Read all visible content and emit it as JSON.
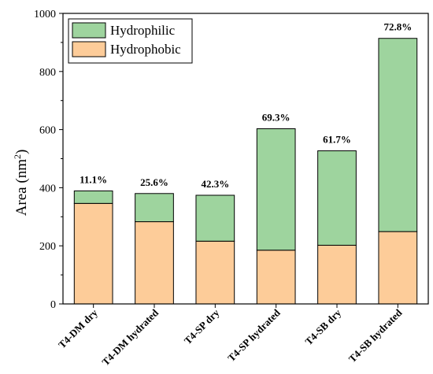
{
  "chart_data": {
    "type": "bar",
    "stacked": true,
    "categories": [
      "T4-DM dry",
      "T4-DM hydrated",
      "T4-SP dry",
      "T4-SP hydrated",
      "T4-SB dry",
      "T4-SB hydrated"
    ],
    "series": [
      {
        "name": "Hydrophobic",
        "color": "#FDCC99",
        "values": [
          346,
          283,
          216,
          185,
          202,
          249
        ]
      },
      {
        "name": "Hydrophilic",
        "color": "#9ED49E",
        "values": [
          43,
          97,
          158,
          418,
          325,
          665
        ]
      }
    ],
    "bar_labels": [
      "11.1%",
      "25.6%",
      "42.3%",
      "69.3%",
      "61.7%",
      "72.8%"
    ],
    "ylabel_main": "Area (nm",
    "ylabel_sup": "2",
    "ylabel_end": ")",
    "ylim": [
      0,
      1000
    ],
    "yticks": [
      "0",
      "200",
      "400",
      "600",
      "800",
      "1000"
    ],
    "ytick_values": [
      0,
      200,
      400,
      600,
      800,
      1000
    ],
    "legend_position": "top-left",
    "grid": false
  }
}
